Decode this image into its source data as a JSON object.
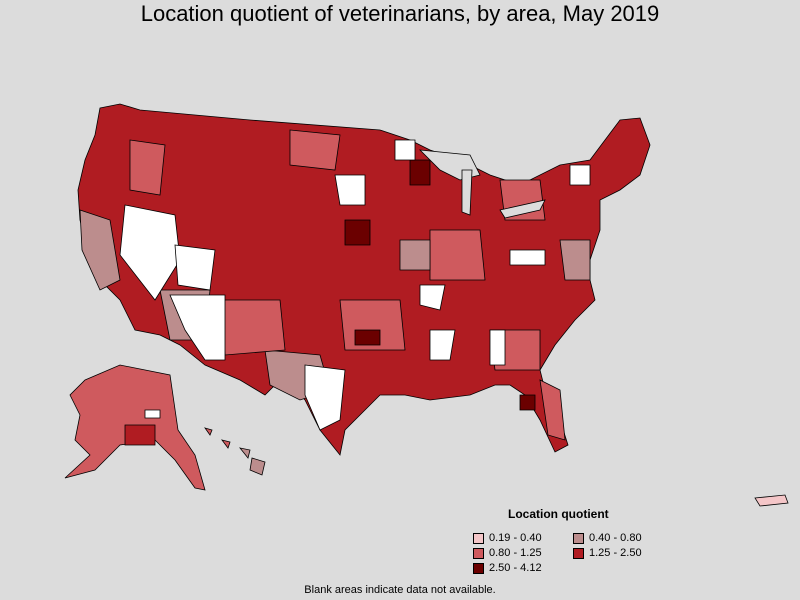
{
  "map": {
    "title": "Location quotient of veterinarians, by area, May 2019",
    "legend": {
      "title": "Location quotient",
      "items": [
        {
          "label": "0.19 - 0.40",
          "color": "#f4c6c8"
        },
        {
          "label": "0.40 - 0.80",
          "color": "#bc8d8d"
        },
        {
          "label": "0.80 - 1.25",
          "color": "#cf5a5e"
        },
        {
          "label": "1.25 - 2.50",
          "color": "#b01c22"
        },
        {
          "label": "2.50 - 4.12",
          "color": "#6b0000"
        }
      ]
    },
    "note": "Blank areas indicate data not available."
  }
}
